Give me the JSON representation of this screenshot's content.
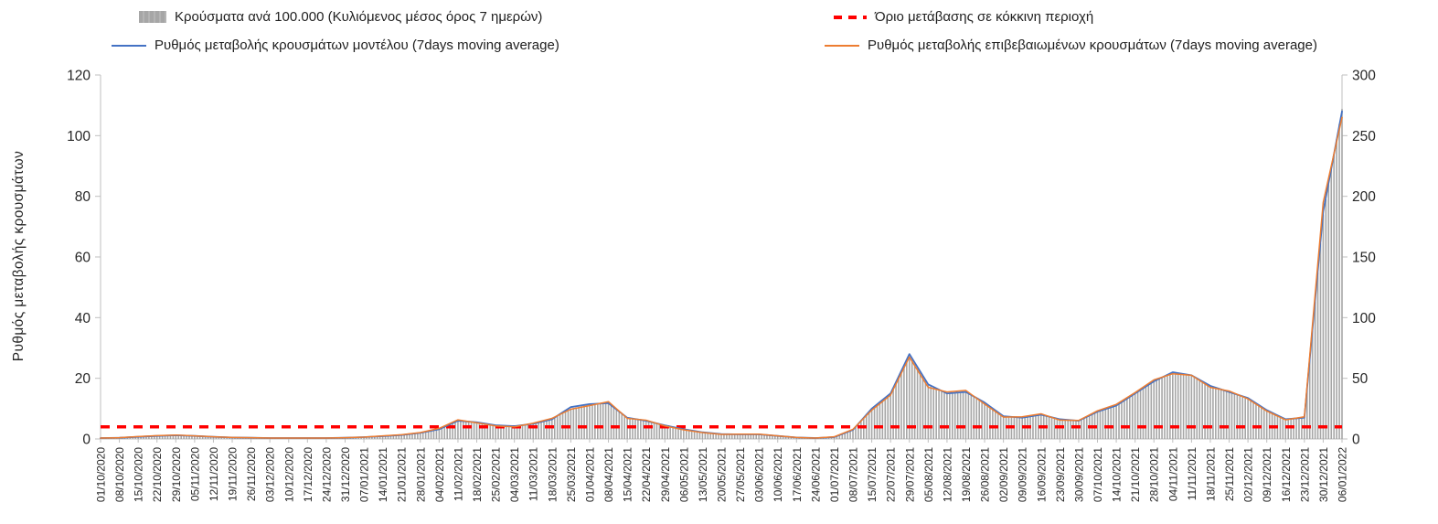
{
  "legend": {
    "bars": "Κρούσματα ανά 100.000 (Κυλιόμενος μέσος όρος 7 ημερών)",
    "threshold": "Όριο μετάβασης σε κόκκινη περιοχή",
    "model": "Ρυθμός μεταβολής κρουσμάτων μοντέλου (7days moving average)",
    "confirmed": "Ρυθμός μεταβολής επιβεβαιωμένων κρουσμάτων (7days moving average)"
  },
  "y_axis_title": "Ρυθμός μεταβολής κρουσμάτων",
  "colors": {
    "bars": "#A6A6A6",
    "model_line": "#4472C4",
    "confirmed_line": "#ED7D31",
    "threshold": "#FF0000",
    "axis": "#BFBFBF",
    "text": "#262626"
  },
  "chart_data": {
    "type": "bar",
    "subtype": "bars-plus-lines",
    "title": "",
    "x_labels": [
      "01/10/2020",
      "08/10/2020",
      "15/10/2020",
      "22/10/2020",
      "29/10/2020",
      "05/11/2020",
      "12/11/2020",
      "19/11/2020",
      "26/11/2020",
      "03/12/2020",
      "10/12/2020",
      "17/12/2020",
      "24/12/2020",
      "31/12/2020",
      "07/01/2021",
      "14/01/2021",
      "21/01/2021",
      "28/01/2021",
      "04/02/2021",
      "11/02/2021",
      "18/02/2021",
      "25/02/2021",
      "04/03/2021",
      "11/03/2021",
      "18/03/2021",
      "25/03/2021",
      "01/04/2021",
      "08/04/2021",
      "15/04/2021",
      "22/04/2021",
      "29/04/2021",
      "06/05/2021",
      "13/05/2021",
      "20/05/2021",
      "27/05/2021",
      "03/06/2021",
      "10/06/2021",
      "17/06/2021",
      "24/06/2021",
      "01/07/2021",
      "08/07/2021",
      "15/07/2021",
      "22/07/2021",
      "29/07/2021",
      "05/08/2021",
      "12/08/2021",
      "19/08/2021",
      "26/08/2021",
      "02/09/2021",
      "09/09/2021",
      "16/09/2021",
      "23/09/2021",
      "30/09/2021",
      "07/10/2021",
      "14/10/2021",
      "21/10/2021",
      "28/10/2021",
      "04/11/2021",
      "11/11/2021",
      "18/11/2021",
      "25/11/2021",
      "02/12/2021",
      "09/12/2021",
      "16/12/2021",
      "23/12/2021",
      "30/12/2021",
      "06/01/2022"
    ],
    "left_axis": {
      "label": "Ρυθμός μεταβολής κρουσμάτων",
      "min": 0,
      "max": 120,
      "ticks": [
        0,
        20,
        40,
        60,
        80,
        100,
        120
      ]
    },
    "right_axis": {
      "label": "",
      "min": 0,
      "max": 300,
      "ticks": [
        0,
        50,
        100,
        150,
        200,
        250,
        300
      ]
    },
    "legend_position": "top",
    "grid": false,
    "series": [
      {
        "name": "Κρούσματα ανά 100.000 (Κυλιόμενος μέσος όρος 7 ημερών)",
        "type": "bar",
        "axis": "right",
        "color": "#A6A6A6",
        "values": [
          0.8,
          1.0,
          1.8,
          2.5,
          3.0,
          2.5,
          1.8,
          1.2,
          1.0,
          0.8,
          0.8,
          0.8,
          0.8,
          1.0,
          1.5,
          2.2,
          3.2,
          5.0,
          8.0,
          15.0,
          13.5,
          11.0,
          10.5,
          12.5,
          16.5,
          25.0,
          28.5,
          30.0,
          17.5,
          15.0,
          11.0,
          8.0,
          5.5,
          4.0,
          4.0,
          4.0,
          2.5,
          1.2,
          0.8,
          1.5,
          7.5,
          24.0,
          37.0,
          68.0,
          45.0,
          38.0,
          39.0,
          29.0,
          18.0,
          17.5,
          20.0,
          16.0,
          15.0,
          22.5,
          28.0,
          38.0,
          48.0,
          55.0,
          53.0,
          43.0,
          39.0,
          33.0,
          23.5,
          16.0,
          17.5,
          185.0,
          272.0
        ]
      },
      {
        "name": "Ρυθμός μεταβολής κρουσμάτων μοντέλου (7days moving average)",
        "type": "line",
        "axis": "left",
        "color": "#4472C4",
        "stroke_width": 1.8,
        "values": [
          0.3,
          0.4,
          0.7,
          1.0,
          1.2,
          1.0,
          0.7,
          0.5,
          0.4,
          0.3,
          0.3,
          0.3,
          0.3,
          0.4,
          0.6,
          0.9,
          1.3,
          2.0,
          3.2,
          6.0,
          5.5,
          4.5,
          4.2,
          5.0,
          6.5,
          10.5,
          11.5,
          11.8,
          7.0,
          6.0,
          4.5,
          3.2,
          2.2,
          1.6,
          1.5,
          1.5,
          1.0,
          0.5,
          0.3,
          0.6,
          3.0,
          10.0,
          15.0,
          28.0,
          18.0,
          15.0,
          15.5,
          12.0,
          7.5,
          7.0,
          8.0,
          6.5,
          6.0,
          9.0,
          11.0,
          15.0,
          19.0,
          22.0,
          21.0,
          17.5,
          15.5,
          13.5,
          9.5,
          6.5,
          7.0,
          75.0,
          108.0
        ]
      },
      {
        "name": "Ρυθμός μεταβολής επιβεβαιωμένων κρουσμάτων (7days moving average)",
        "type": "line",
        "axis": "left",
        "color": "#ED7D31",
        "stroke_width": 1.5,
        "values": [
          0.3,
          0.4,
          0.8,
          1.1,
          1.3,
          1.0,
          0.7,
          0.5,
          0.4,
          0.3,
          0.3,
          0.3,
          0.3,
          0.4,
          0.6,
          1.0,
          1.4,
          2.1,
          3.5,
          6.3,
          5.3,
          4.3,
          4.0,
          5.2,
          6.8,
          9.8,
          11.0,
          12.3,
          6.8,
          6.2,
          4.3,
          3.0,
          2.1,
          1.5,
          1.6,
          1.6,
          1.0,
          0.5,
          0.3,
          0.7,
          3.2,
          9.5,
          14.5,
          27.0,
          17.0,
          15.5,
          16.0,
          11.5,
          7.2,
          7.3,
          8.3,
          6.2,
          6.1,
          9.3,
          11.4,
          15.3,
          19.5,
          21.5,
          21.0,
          17.0,
          15.8,
          13.2,
          9.2,
          6.3,
          7.3,
          78.0,
          106.0
        ]
      },
      {
        "name": "Όριο μετάβασης σε κόκκινη περιοχή",
        "type": "threshold",
        "axis": "left",
        "color": "#FF0000",
        "value": 4
      }
    ]
  }
}
